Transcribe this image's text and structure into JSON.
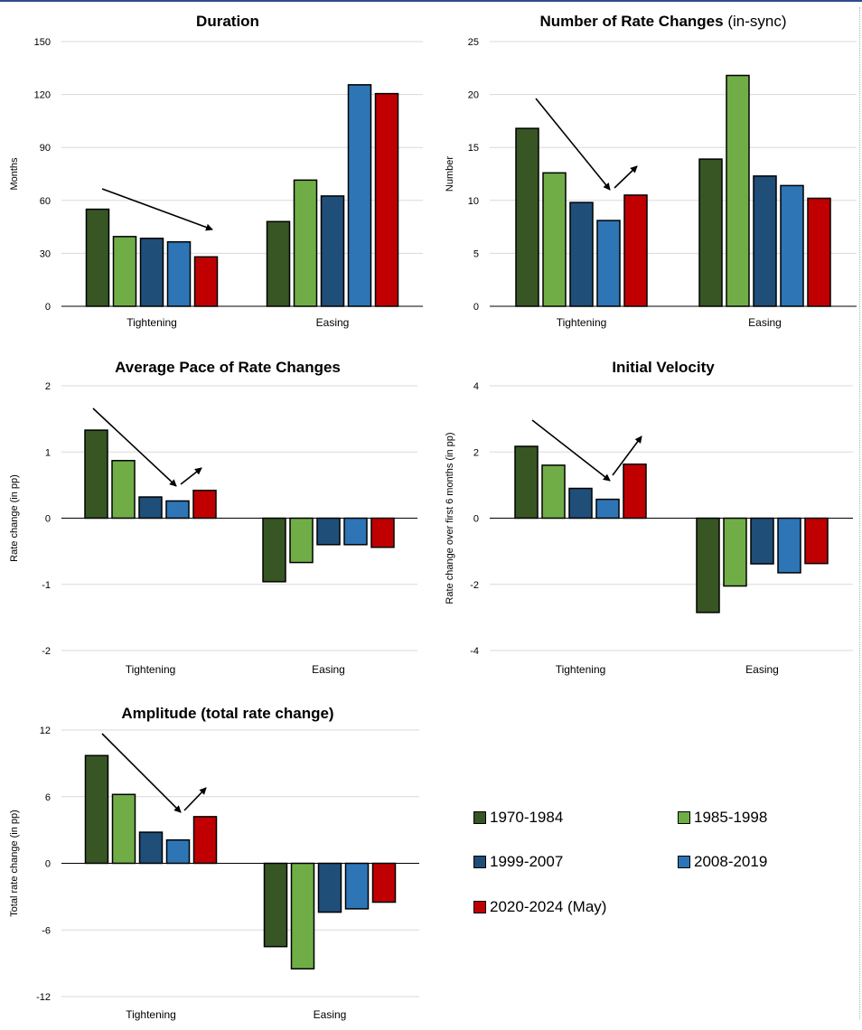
{
  "series": [
    {
      "name": "1970-1984",
      "color": "#375623"
    },
    {
      "name": "1985-1998",
      "color": "#70ad47"
    },
    {
      "name": "1999-2007",
      "color": "#1f4e79"
    },
    {
      "name": "2008-2019",
      "color": "#2e75b6"
    },
    {
      "name": "2020-2024 (May)",
      "color": "#c00000"
    }
  ],
  "chart_data": [
    {
      "type": "bar",
      "title": "Duration",
      "title_suffix": "",
      "ylabel": "Months",
      "categories": [
        "Tightening",
        "Easing"
      ],
      "ylim": [
        0,
        150
      ],
      "yticks": [
        "0",
        "30",
        "60",
        "90",
        "120",
        "150"
      ],
      "series": [
        {
          "name": "1970-1984",
          "values": [
            55,
            48
          ]
        },
        {
          "name": "1985-1998",
          "values": [
            39.5,
            71.5
          ]
        },
        {
          "name": "1999-2007",
          "values": [
            38.5,
            62.5
          ]
        },
        {
          "name": "2008-2019",
          "values": [
            36.5,
            125.5
          ]
        },
        {
          "name": "2020-2024 (May)",
          "values": [
            28,
            120.5
          ]
        }
      ],
      "grid": true
    },
    {
      "type": "bar",
      "title": "Number of Rate Changes",
      "title_suffix": " (in-sync)",
      "ylabel": "Number",
      "categories": [
        "Tightening",
        "Easing"
      ],
      "ylim": [
        0,
        25
      ],
      "yticks": [
        "0",
        "5",
        "10",
        "15",
        "20",
        "25"
      ],
      "series": [
        {
          "name": "1970-1984",
          "values": [
            16.8,
            13.9
          ]
        },
        {
          "name": "1985-1998",
          "values": [
            12.6,
            21.8
          ]
        },
        {
          "name": "1999-2007",
          "values": [
            9.8,
            12.3
          ]
        },
        {
          "name": "2008-2019",
          "values": [
            8.1,
            11.4
          ]
        },
        {
          "name": "2020-2024 (May)",
          "values": [
            10.5,
            10.2
          ]
        }
      ],
      "grid": true
    },
    {
      "type": "bar",
      "title": "Average Pace of Rate Changes",
      "title_suffix": "",
      "ylabel": "Rate change (in pp)",
      "categories": [
        "Tightening",
        "Easing"
      ],
      "ylim": [
        -2,
        2
      ],
      "yticks": [
        "-2",
        "-1",
        "0",
        "1",
        "2"
      ],
      "series": [
        {
          "name": "1970-1984",
          "values": [
            1.33,
            -0.96
          ]
        },
        {
          "name": "1985-1998",
          "values": [
            0.87,
            -0.67
          ]
        },
        {
          "name": "1999-2007",
          "values": [
            0.32,
            -0.4
          ]
        },
        {
          "name": "2008-2019",
          "values": [
            0.26,
            -0.4
          ]
        },
        {
          "name": "2020-2024 (May)",
          "values": [
            0.42,
            -0.44
          ]
        }
      ],
      "grid": true
    },
    {
      "type": "bar",
      "title": "Initial Velocity",
      "title_suffix": "",
      "ylabel": "Rate change over first 6 months (in pp)",
      "categories": [
        "Tightening",
        "Easing"
      ],
      "ylim": [
        -4,
        4
      ],
      "yticks": [
        "-4",
        "-2",
        "0",
        "2",
        "4"
      ],
      "series": [
        {
          "name": "1970-1984",
          "values": [
            2.17,
            -2.85
          ]
        },
        {
          "name": "1985-1998",
          "values": [
            1.6,
            -2.05
          ]
        },
        {
          "name": "1999-2007",
          "values": [
            0.9,
            -1.38
          ]
        },
        {
          "name": "2008-2019",
          "values": [
            0.57,
            -1.65
          ]
        },
        {
          "name": "2020-2024 (May)",
          "values": [
            1.63,
            -1.37
          ]
        }
      ],
      "grid": true
    },
    {
      "type": "bar",
      "title": "Amplitude (total rate change)",
      "title_suffix": "",
      "ylabel": "Total rate change (in pp)",
      "categories": [
        "Tightening",
        "Easing"
      ],
      "ylim": [
        -12,
        12
      ],
      "yticks": [
        "-12",
        "-6",
        "0",
        "6",
        "12"
      ],
      "series": [
        {
          "name": "1970-1984",
          "values": [
            9.7,
            -7.5
          ]
        },
        {
          "name": "1985-1998",
          "values": [
            6.2,
            -9.5
          ]
        },
        {
          "name": "1999-2007",
          "values": [
            2.8,
            -4.4
          ]
        },
        {
          "name": "2008-2019",
          "values": [
            2.1,
            -4.1
          ]
        },
        {
          "name": "2020-2024 (May)",
          "values": [
            4.2,
            -3.5
          ]
        }
      ],
      "grid": true
    }
  ]
}
